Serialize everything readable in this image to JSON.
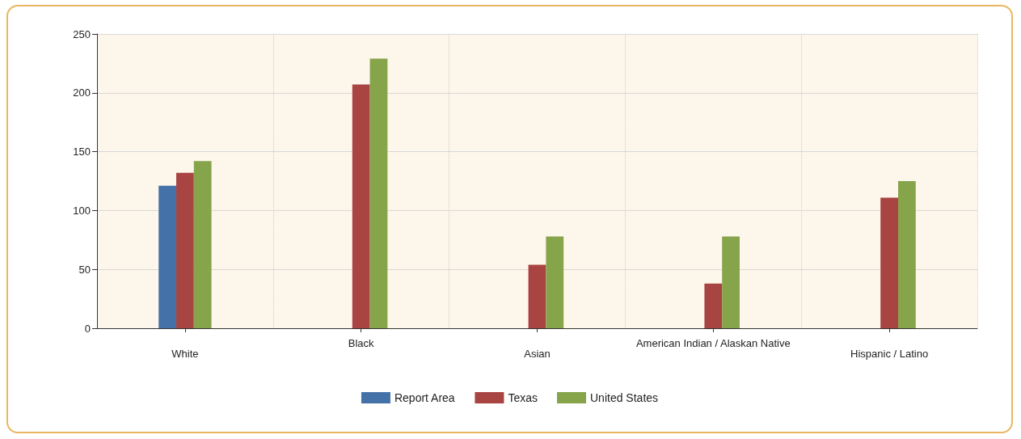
{
  "chart_data": {
    "type": "bar",
    "categories": [
      "White",
      "Black",
      "Asian",
      "American Indian / Alaskan Native",
      "Hispanic / Latino"
    ],
    "series": [
      {
        "name": "Report Area",
        "color": "#4472a8",
        "values": [
          121,
          null,
          null,
          null,
          null
        ]
      },
      {
        "name": "Texas",
        "color": "#a84442",
        "values": [
          132,
          207,
          54,
          38,
          111
        ]
      },
      {
        "name": "United States",
        "color": "#86a44a",
        "values": [
          142,
          229,
          78,
          78,
          125
        ]
      }
    ],
    "ylim": [
      0,
      250
    ],
    "yticks": [
      0,
      50,
      100,
      150,
      200,
      250
    ],
    "grid": true,
    "legend": "bottom"
  }
}
